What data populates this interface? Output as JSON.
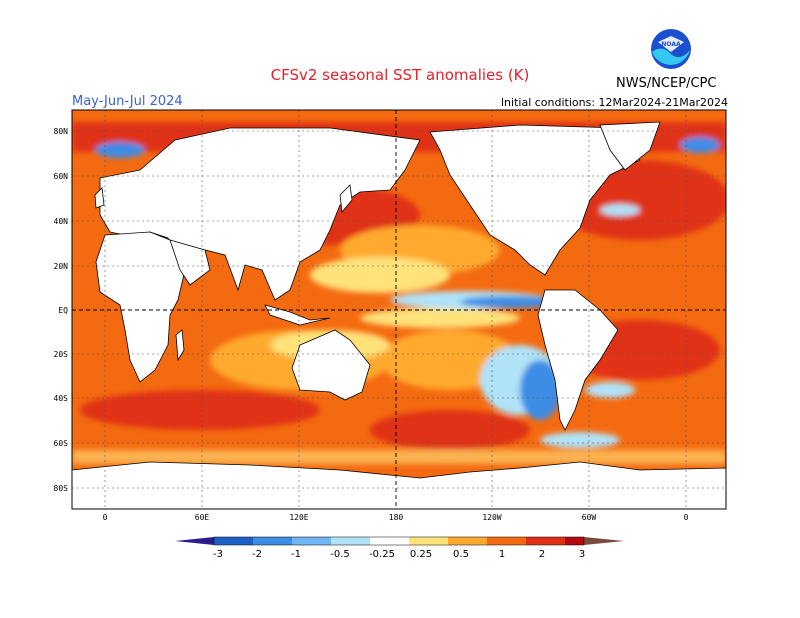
{
  "header": {
    "title": "CFSv2 seasonal SST anomalies (K)",
    "period": "May-Jun-Jul 2024",
    "initial_conditions": "Initial conditions: 12Mar2024-21Mar2024",
    "agency": "NWS/NCEP/CPC",
    "logo_text": "NOAA"
  },
  "axes": {
    "lat_labels": [
      "80N",
      "60N",
      "40N",
      "20N",
      "EQ",
      "20S",
      "40S",
      "60S",
      "80S"
    ],
    "lon_labels": [
      "0",
      "60E",
      "120E",
      "180",
      "120W",
      "60W",
      "0"
    ]
  },
  "colorbar": {
    "labels": [
      "-3",
      "-2",
      "-1",
      "-0.5",
      "-0.25",
      "0.25",
      "0.5",
      "1",
      "2",
      "3"
    ],
    "colors": [
      "#2a1c8c",
      "#1f5fc8",
      "#3d8ce6",
      "#6fb6f2",
      "#b0e2f8",
      "#ffffff",
      "#ffe27a",
      "#ffaa2e",
      "#f46a10",
      "#e03016",
      "#b40a10",
      "#7a4a3c"
    ]
  },
  "colors": {
    "warm_strong": "#e03016",
    "warm": "#f46a10",
    "warm_light": "#ffaa2e",
    "yellow": "#ffe27a",
    "cool": "#3d8ce6",
    "cool_light": "#b0e2f8",
    "land": "#ffffff"
  }
}
